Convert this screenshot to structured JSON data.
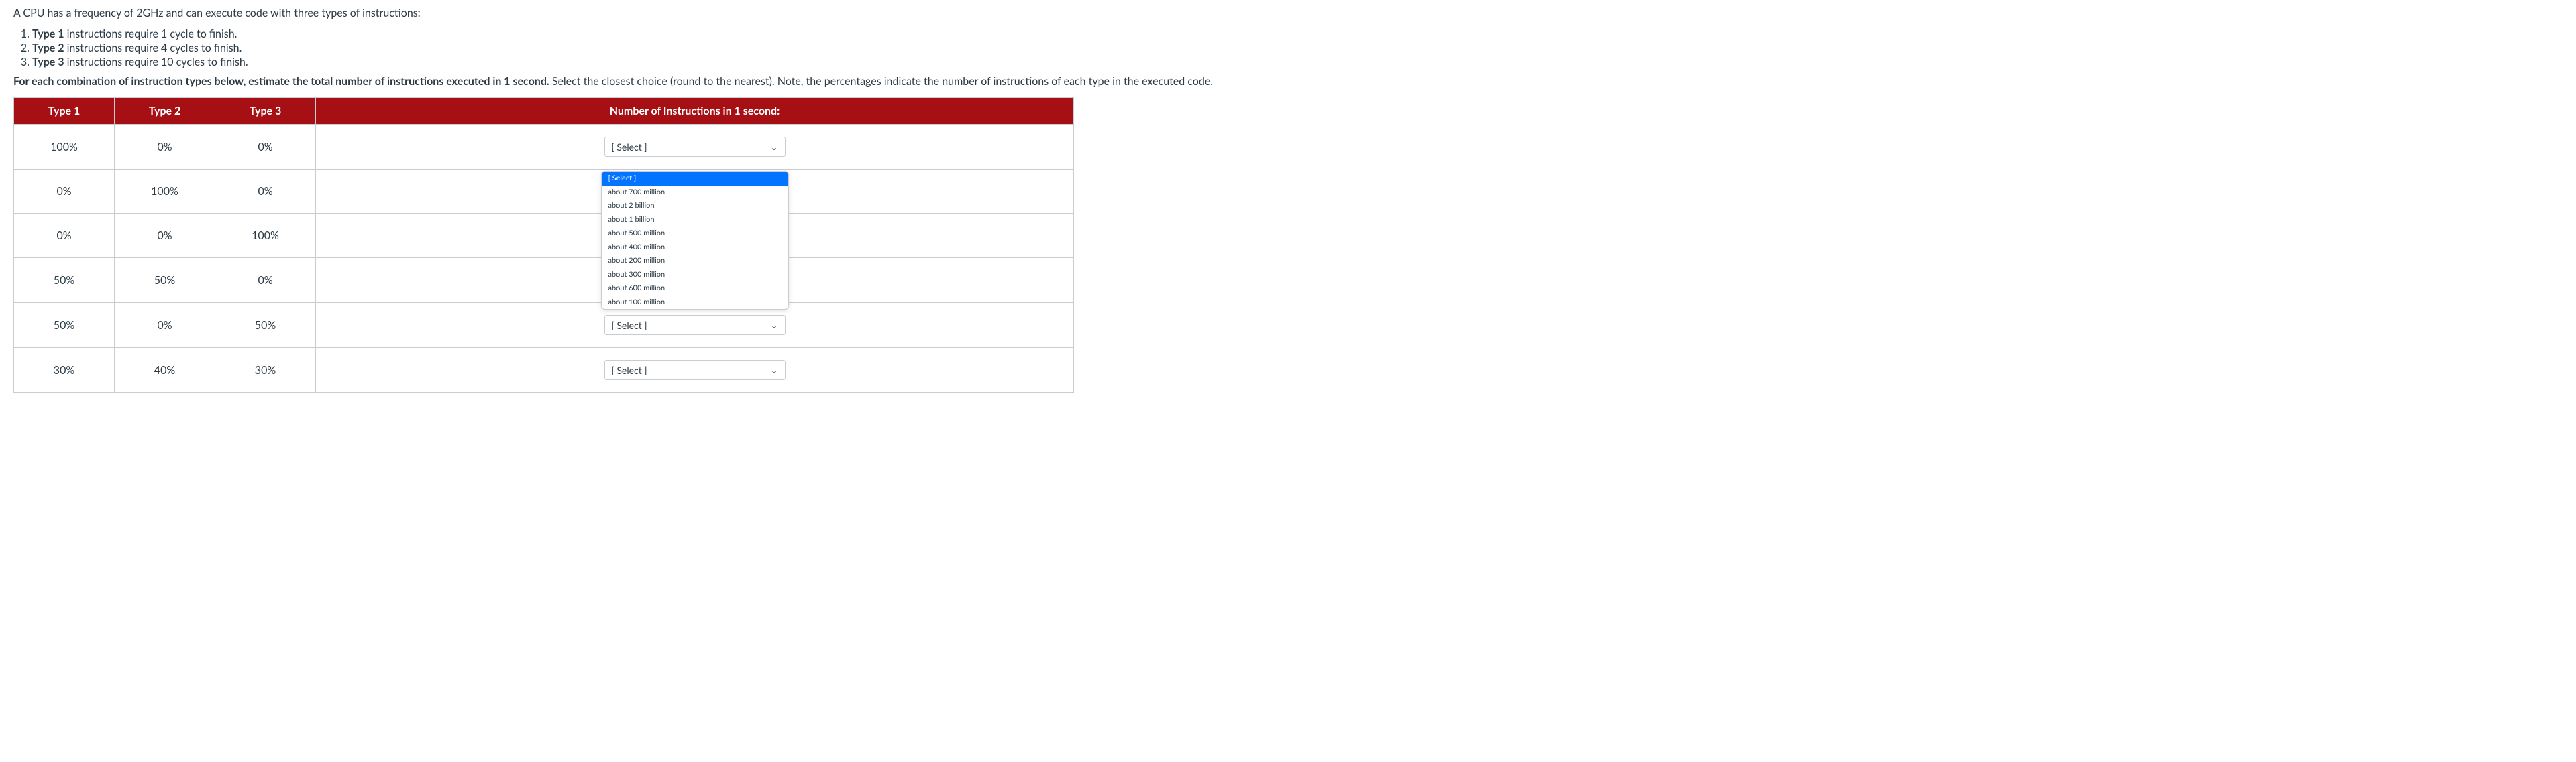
{
  "intro": "A CPU has a frequency of 2GHz and can execute code with three types of instructions:",
  "types": [
    {
      "label": "Type 1",
      "text": " instructions require 1 cycle to finish."
    },
    {
      "label": "Type 2",
      "text": " instructions require 4 cycles to finish."
    },
    {
      "label": "Type 3",
      "text": " instructions require 10 cycles to finish."
    }
  ],
  "prompt_bold": "For each combination of instruction types below, estimate the total number of instructions executed in 1 second.",
  "prompt_rest1": " Select the closest choice (",
  "prompt_underline": "round to the nearest",
  "prompt_rest2": "). Note, the percentages indicate the number of instructions of each type in the executed code.",
  "headers": {
    "t1": "Type 1",
    "t2": "Type 2",
    "t3": "Type 3",
    "num": "Number of Instructions in 1 second:"
  },
  "select_placeholder": "[ Select ]",
  "dropdown_options": [
    "[ Select ]",
    "about 700 million",
    "about 2 billion",
    "about 1 billion",
    "about 500 million",
    "about 400 million",
    "about 200 million",
    "about 300 million",
    "about 600 million",
    "about 100 million"
  ],
  "rows": [
    {
      "t1": "100%",
      "t2": "0%",
      "t3": "0%",
      "control": "select"
    },
    {
      "t1": "0%",
      "t2": "100%",
      "t3": "0%",
      "control": "dropdown"
    },
    {
      "t1": "0%",
      "t2": "0%",
      "t3": "100%",
      "control": "none"
    },
    {
      "t1": "50%",
      "t2": "50%",
      "t3": "0%",
      "control": "select"
    },
    {
      "t1": "50%",
      "t2": "0%",
      "t3": "50%",
      "control": "select"
    },
    {
      "t1": "30%",
      "t2": "40%",
      "t3": "30%",
      "control": "select"
    }
  ],
  "colors": {
    "header_bg": "#a60f13",
    "border": "#c7cdd1",
    "highlight": "#0374ff"
  }
}
